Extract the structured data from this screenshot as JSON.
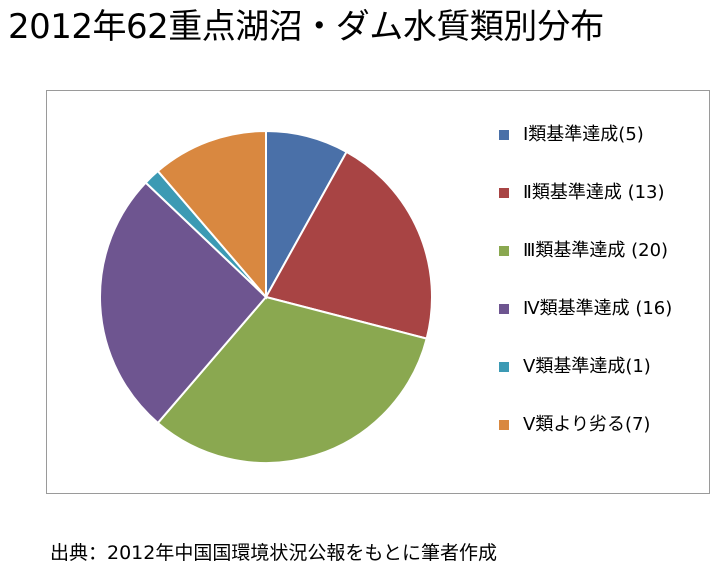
{
  "title": "2012年62重点湖沼・ダム水質類別分布",
  "source": "出典：2012年中国国環境状況公報をもとに筆者作成",
  "chart_data": {
    "type": "pie",
    "title": "2012年62重点湖沼・ダム水質類別分布",
    "start_angle_deg": 0,
    "direction": "clockwise",
    "legend_position": "right",
    "categories": [
      "Ⅰ類基準達成(5)",
      "Ⅱ類基準達成 (13)",
      "Ⅲ類基準達成 (20)",
      "Ⅳ類基準達成 (16)",
      "Ⅴ類基準達成(1)",
      "Ⅴ類より劣る(7)"
    ],
    "values": [
      5,
      13,
      20,
      16,
      1,
      7
    ],
    "colors": [
      "#4a70a8",
      "#a84444",
      "#8aa850",
      "#6e5590",
      "#3c9ab4",
      "#d98840"
    ]
  },
  "legend": {
    "items": [
      "Ⅰ類基準達成(5)",
      "Ⅱ類基準達成 (13)",
      "Ⅲ類基準達成 (20)",
      "Ⅳ類基準達成 (16)",
      "Ⅴ類基準達成(1)",
      "Ⅴ類より劣る(7)"
    ]
  }
}
